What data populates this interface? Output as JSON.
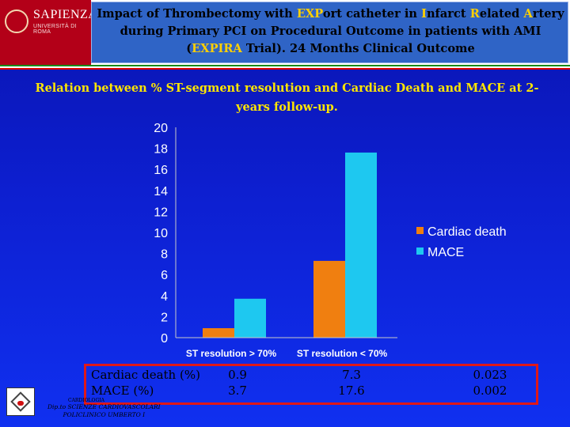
{
  "header": {
    "logo_name": "SAPIENZA",
    "logo_subtitle": "UNIVERSITÀ DI ROMA",
    "title_parts": [
      {
        "text": "Impact of Thrombectomy with ",
        "hl": false
      },
      {
        "text": "EXP",
        "hl": true
      },
      {
        "text": "ort catheter in ",
        "hl": false
      },
      {
        "text": "I",
        "hl": true
      },
      {
        "text": "nfarct ",
        "hl": false
      },
      {
        "text": "R",
        "hl": true
      },
      {
        "text": "elated ",
        "hl": false
      },
      {
        "text": "A",
        "hl": true
      },
      {
        "text": "rtery during Primary PCI on Procedural Outcome in patients with AMI (",
        "hl": false
      },
      {
        "text": "EXPIRA",
        "hl": true
      },
      {
        "text": " Trial). 24 Months Clinical Outcome",
        "hl": false
      }
    ]
  },
  "subtitle": "Relation between % ST-segment resolution and Cardiac Death and MACE at 2-years follow-up.",
  "chart_data": {
    "type": "bar",
    "categories": [
      "ST resolution > 70%",
      "ST resolution < 70%"
    ],
    "series": [
      {
        "name": "Cardiac death",
        "values": [
          0.9,
          7.3
        ],
        "color": "#f07f10"
      },
      {
        "name": "MACE",
        "values": [
          3.7,
          17.6
        ],
        "color": "#1ec8f0"
      }
    ],
    "ylim": [
      0,
      20
    ],
    "yticks": [
      "0",
      "2",
      "4",
      "6",
      "8",
      "10",
      "12",
      "14",
      "16",
      "18",
      "20"
    ],
    "legend": "right",
    "grid": false
  },
  "table": {
    "rows": [
      {
        "label": "Cardiac death (%)",
        "v1": "0.9",
        "v2": "7.3",
        "p": "0.023"
      },
      {
        "label": "MACE (%)",
        "v1": "3.7",
        "v2": "17.6",
        "p": "0.002"
      }
    ]
  },
  "footer": {
    "small": "CARDIOLOGIA",
    "line1": "Dip.to SCIENZE CARDIOVASCOLARI",
    "line2": "POLICLINICO UMBERTO I"
  }
}
